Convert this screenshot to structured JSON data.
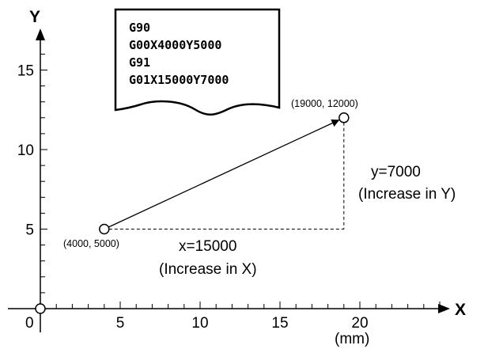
{
  "program_lines": [
    "G90",
    "G00X4000Y5000",
    "G91",
    "G01X15000Y7000"
  ],
  "axes": {
    "x_label": "X",
    "y_label": "Y",
    "x_unit": "(mm)",
    "origin_label": "0",
    "x_ticks": [
      {
        "value": 5,
        "label": "5"
      },
      {
        "value": 10,
        "label": "10"
      },
      {
        "value": 15,
        "label": "15"
      },
      {
        "value": 20,
        "label": "20"
      }
    ],
    "y_ticks": [
      {
        "value": 5,
        "label": "5"
      },
      {
        "value": 10,
        "label": "10"
      },
      {
        "value": 15,
        "label": "15"
      }
    ],
    "x_minor_step": 1,
    "y_minor_step": 1
  },
  "start_point": {
    "x": 4,
    "y": 5,
    "label": "(4000, 5000)"
  },
  "end_point": {
    "x": 19,
    "y": 12,
    "label": "(19000, 12000)"
  },
  "increment_x": {
    "line1": "x=15000",
    "line2": "(Increase in X)"
  },
  "increment_y": {
    "line1": "y=7000",
    "line2": "(Increase in Y)"
  }
}
